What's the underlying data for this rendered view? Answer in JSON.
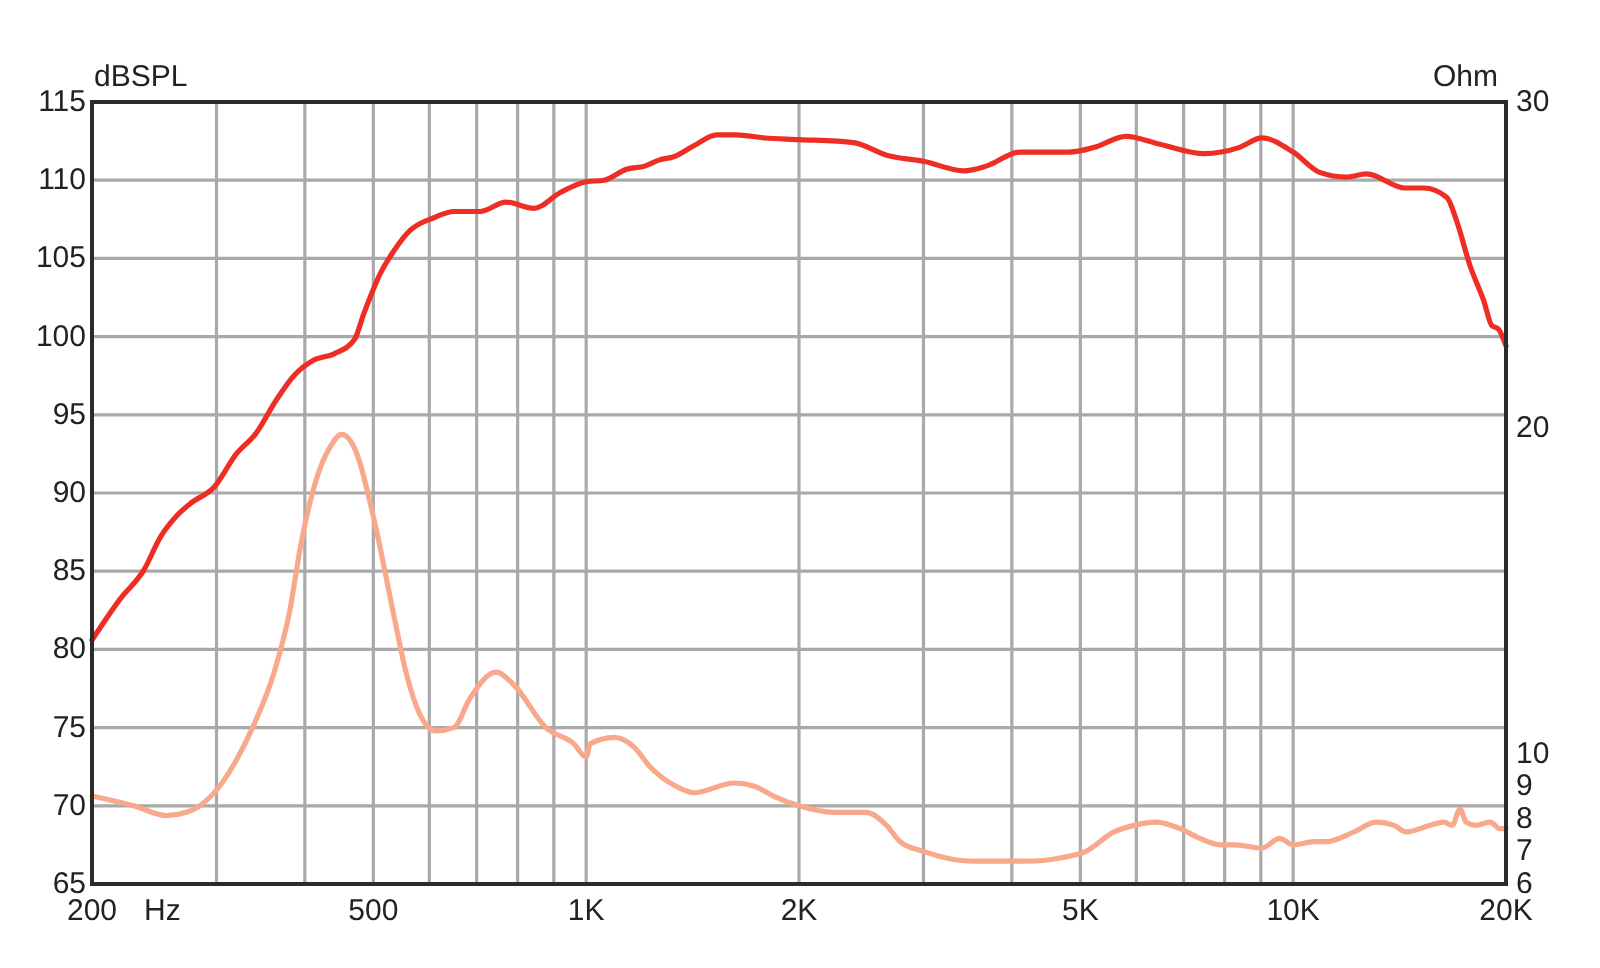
{
  "chart_data": {
    "type": "line",
    "xlabel": "Hz",
    "ylabel": "dBSPL",
    "y2label": "Ohm",
    "log": "x",
    "grid": true,
    "xlim": [
      200,
      20000
    ],
    "xticks": [
      200,
      {
        "value": 300,
        "label": null
      },
      {
        "value": 400,
        "label": null
      },
      500,
      {
        "value": 600,
        "label": null
      },
      {
        "value": 700,
        "label": null
      },
      {
        "value": 800,
        "label": null
      },
      {
        "value": 900,
        "label": null
      },
      {
        "value": 1000,
        "label": "1K"
      },
      {
        "value": 2000,
        "label": "2K"
      },
      {
        "value": 3000,
        "label": null
      },
      {
        "value": 4000,
        "label": null
      },
      {
        "value": 5000,
        "label": "5K"
      },
      {
        "value": 6000,
        "label": null
      },
      {
        "value": 7000,
        "label": null
      },
      {
        "value": 8000,
        "label": null
      },
      {
        "value": 9000,
        "label": null
      },
      {
        "value": 10000,
        "label": "10K"
      },
      {
        "value": 20000,
        "label": "20K"
      }
    ],
    "ylim": [
      65,
      115
    ],
    "yticks": [
      65,
      70,
      75,
      80,
      85,
      90,
      95,
      100,
      105,
      110,
      115
    ],
    "y2lim": [
      6,
      30
    ],
    "y2ticks": [
      6,
      7,
      8,
      9,
      10,
      20,
      30
    ],
    "series": [
      {
        "color": "#ee2d24",
        "x": [
          200,
          219,
          237,
          250,
          263,
          275,
          298,
          320,
          341,
          364,
          386,
          412,
          440,
          470,
          485,
          511,
          535,
          564,
          609,
          650,
          708,
          770,
          844,
          918,
          1000,
          1060,
          1140,
          1210,
          1270,
          1330,
          1420,
          1530,
          1630,
          1790,
          2000,
          2390,
          2660,
          3010,
          3420,
          3680,
          4110,
          4830,
          5230,
          5800,
          6480,
          7480,
          8400,
          9030,
          10000,
          10900,
          11900,
          12700,
          14400,
          15300,
          16500,
          17000,
          17800,
          18600,
          19100,
          19500,
          20000
        ],
        "values": [
          80.6,
          83.2,
          85.1,
          87.2,
          88.5,
          89.3,
          90.4,
          92.5,
          93.8,
          95.9,
          97.5,
          98.5,
          98.9,
          99.8,
          101.5,
          104,
          105.5,
          106.8,
          107.6,
          108,
          108,
          108.6,
          108.2,
          109.2,
          109.9,
          110,
          110.7,
          110.9,
          111.3,
          111.5,
          112.2,
          112.9,
          112.9,
          112.7,
          112.6,
          112.4,
          111.6,
          111.2,
          110.6,
          110.9,
          111.8,
          111.8,
          112.1,
          112.8,
          112.3,
          111.7,
          112.1,
          112.7,
          111.8,
          110.5,
          110.2,
          110.4,
          109.5,
          109.5,
          108.9,
          107.5,
          104.5,
          102.3,
          100.7,
          100.5,
          99.4
        ]
      },
      {
        "color": "#f8a98b",
        "axis": "y2",
        "x": [
          200,
          229,
          255,
          272,
          284,
          303,
          320,
          339,
          362,
          381,
          394,
          415,
          434,
          451,
          472,
          501,
          535,
          556,
          582,
          613,
          650,
          685,
          746,
          791,
          877,
          961,
          1000,
          1013,
          1095,
          1169,
          1231,
          1340,
          1420,
          1620,
          1730,
          1840,
          2000,
          2240,
          2490,
          2660,
          2780,
          3000,
          3230,
          3540,
          3780,
          4190,
          4680,
          5090,
          5580,
          5960,
          6400,
          6920,
          7380,
          7880,
          8300,
          9030,
          9570,
          10000,
          10700,
          11130,
          12190,
          13100,
          13890,
          14440,
          15620,
          16340,
          16780,
          17220,
          17560,
          18140,
          18990,
          19610,
          20000
        ],
        "values": [
          8.7,
          8.4,
          8.1,
          8.2,
          8.4,
          9.0,
          9.8,
          10.9,
          12.5,
          14.4,
          16.3,
          18.4,
          19.4,
          19.8,
          19.3,
          17.2,
          14.2,
          12.5,
          11.2,
          10.7,
          10.8,
          11.7,
          12.5,
          12.1,
          10.8,
          10.3,
          9.9,
          10.3,
          10.5,
          10.2,
          9.6,
          9.0,
          8.8,
          9.1,
          9.0,
          8.7,
          8.4,
          8.2,
          8.2,
          7.8,
          7.3,
          7.0,
          6.8,
          6.7,
          6.7,
          6.7,
          6.8,
          7.0,
          7.6,
          7.8,
          7.9,
          7.7,
          7.4,
          7.2,
          7.2,
          7.1,
          7.4,
          7.2,
          7.3,
          7.3,
          7.6,
          7.9,
          7.8,
          7.6,
          7.8,
          7.9,
          7.8,
          8.3,
          7.9,
          7.8,
          7.9,
          7.7,
          7.7
        ]
      }
    ]
  }
}
